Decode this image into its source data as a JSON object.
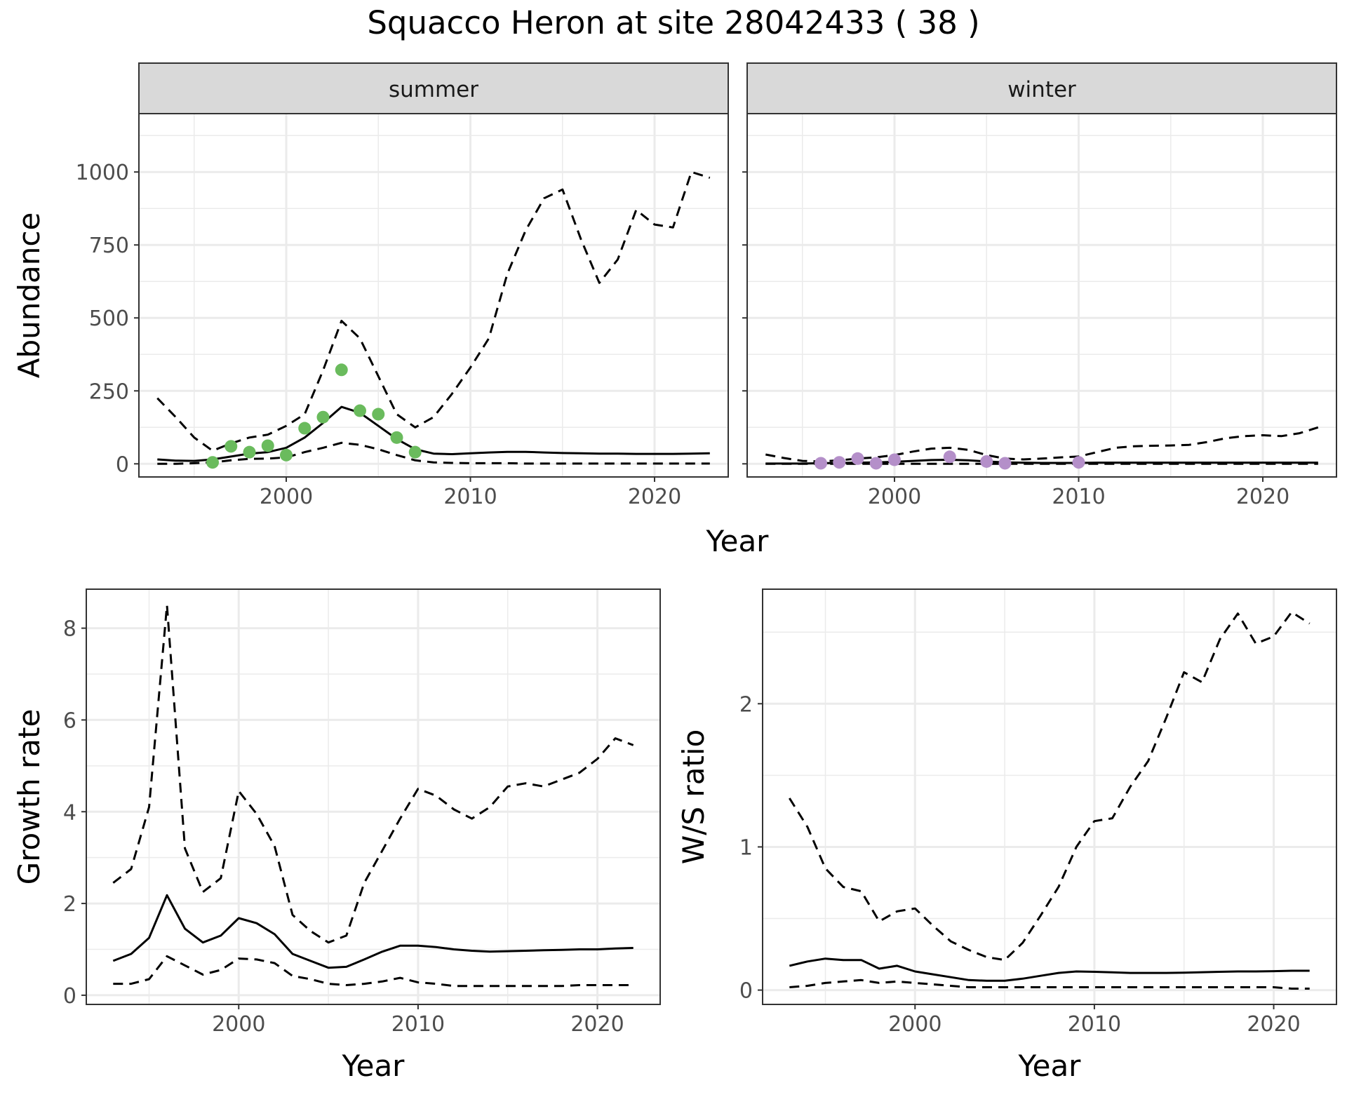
{
  "title": "Squacco Heron at site 28042433 ( 38 )",
  "chart_data": [
    {
      "id": "abundance",
      "type": "line",
      "facets": [
        {
          "label": "summer",
          "point_color": "#6abb5d",
          "fit": {
            "x": [
              1993,
              1994,
              1995,
              1996,
              1997,
              1998,
              1999,
              2000,
              2001,
              2002,
              2003,
              2004,
              2005,
              2006,
              2007,
              2008,
              2009,
              2010,
              2011,
              2012,
              2013,
              2014,
              2015,
              2016,
              2017,
              2018,
              2019,
              2020,
              2021,
              2022,
              2023
            ],
            "lower": [
              0,
              0,
              2,
              5,
              12,
              17,
              18,
              22,
              40,
              55,
              72,
              65,
              50,
              30,
              12,
              5,
              3,
              2,
              2,
              2,
              1,
              1,
              1,
              1,
              1,
              1,
              1,
              1,
              1,
              1,
              1
            ],
            "mid": [
              15,
              11,
              10,
              15,
              25,
              35,
              40,
              55,
              90,
              140,
              195,
              175,
              130,
              85,
              50,
              35,
              33,
              36,
              39,
              41,
              41,
              39,
              37,
              36,
              35,
              35,
              34,
              34,
              34,
              35,
              36
            ],
            "upper": [
              225,
              160,
              90,
              45,
              70,
              90,
              100,
              130,
              170,
              320,
              490,
              430,
              300,
              170,
              125,
              160,
              240,
              330,
              430,
              650,
              800,
              910,
              940,
              770,
              620,
              700,
              870,
              820,
              810,
              1000,
              980
            ]
          },
          "observations": {
            "x": [
              1996,
              1997,
              1998,
              1999,
              2000,
              2001,
              2002,
              2003,
              2004,
              2005,
              2006,
              2007
            ],
            "y": [
              5,
              60,
              40,
              62,
              30,
              122,
              160,
              322,
              182,
              170,
              90,
              40
            ]
          }
        },
        {
          "label": "winter",
          "point_color": "#b48fc9",
          "fit": {
            "x": [
              1993,
              1994,
              1995,
              1996,
              1997,
              1998,
              1999,
              2000,
              2001,
              2002,
              2003,
              2004,
              2005,
              2006,
              2007,
              2008,
              2009,
              2010,
              2011,
              2012,
              2013,
              2014,
              2015,
              2016,
              2017,
              2018,
              2019,
              2020,
              2021,
              2022,
              2023
            ],
            "lower": [
              0,
              0,
              0,
              0,
              0,
              0,
              0,
              0,
              0,
              0,
              0,
              0,
              0,
              0,
              0,
              0,
              0,
              0,
              0,
              0,
              0,
              0,
              0,
              0,
              0,
              0,
              0,
              0,
              0,
              0,
              0
            ],
            "mid": [
              1,
              1,
              1,
              2,
              3,
              4,
              5,
              7,
              10,
              13,
              14,
              12,
              8,
              5,
              4,
              3,
              3,
              3,
              4,
              4,
              4,
              4,
              4,
              4,
              4,
              4,
              4,
              4,
              4,
              4,
              4
            ],
            "upper": [
              32,
              20,
              10,
              8,
              12,
              18,
              22,
              30,
              42,
              52,
              55,
              48,
              30,
              18,
              15,
              18,
              22,
              25,
              40,
              55,
              60,
              62,
              63,
              65,
              75,
              88,
              95,
              98,
              95,
              105,
              125
            ]
          },
          "observations": {
            "x": [
              1996,
              1997,
              1998,
              1999,
              2000,
              2003,
              2005,
              2006,
              2010
            ],
            "y": [
              2,
              5,
              18,
              2,
              14,
              24,
              8,
              2,
              5
            ]
          }
        }
      ],
      "xlabel": "Year",
      "ylabel": "Abundance",
      "xlim": [
        1992,
        2024
      ],
      "ylim": [
        -45,
        1200
      ],
      "x_ticks": [
        2000,
        2010,
        2020
      ],
      "y_ticks": [
        0,
        250,
        500,
        750,
        1000
      ],
      "grid": true
    },
    {
      "id": "growth",
      "type": "line",
      "series_data": {
        "x": [
          1993,
          1994,
          1995,
          1996,
          1997,
          1998,
          1999,
          2000,
          2001,
          2002,
          2003,
          2004,
          2005,
          2006,
          2007,
          2008,
          2009,
          2010,
          2011,
          2012,
          2013,
          2014,
          2015,
          2016,
          2017,
          2018,
          2019,
          2020,
          2021,
          2022
        ],
        "lower": [
          0.25,
          0.25,
          0.35,
          0.85,
          0.65,
          0.45,
          0.55,
          0.8,
          0.78,
          0.7,
          0.42,
          0.35,
          0.25,
          0.22,
          0.25,
          0.3,
          0.38,
          0.28,
          0.25,
          0.2,
          0.2,
          0.2,
          0.2,
          0.2,
          0.2,
          0.2,
          0.22,
          0.22,
          0.22,
          0.22
        ],
        "mid": [
          0.75,
          0.9,
          1.25,
          2.18,
          1.45,
          1.15,
          1.3,
          1.68,
          1.57,
          1.33,
          0.9,
          0.75,
          0.6,
          0.62,
          0.78,
          0.95,
          1.08,
          1.08,
          1.05,
          1.0,
          0.97,
          0.95,
          0.96,
          0.97,
          0.98,
          0.99,
          1.0,
          1.0,
          1.02,
          1.03
        ],
        "upper": [
          2.45,
          2.75,
          4.1,
          8.5,
          3.2,
          2.25,
          2.55,
          4.45,
          3.95,
          3.25,
          1.75,
          1.4,
          1.15,
          1.3,
          2.45,
          3.15,
          3.85,
          4.5,
          4.35,
          4.05,
          3.85,
          4.1,
          4.55,
          4.62,
          4.55,
          4.7,
          4.85,
          5.15,
          5.6,
          5.45
        ]
      },
      "xlabel": "Year",
      "ylabel": "Growth rate",
      "xlim": [
        1991.5,
        2023.5
      ],
      "ylim": [
        -0.2,
        8.85
      ],
      "x_ticks": [
        2000,
        2010,
        2020
      ],
      "y_ticks": [
        0,
        2,
        4,
        6,
        8
      ],
      "grid": true
    },
    {
      "id": "ratio",
      "type": "line",
      "series_data": {
        "x": [
          1993,
          1994,
          1995,
          1996,
          1997,
          1998,
          1999,
          2000,
          2001,
          2002,
          2003,
          2004,
          2005,
          2006,
          2007,
          2008,
          2009,
          2010,
          2011,
          2012,
          2013,
          2014,
          2015,
          2016,
          2017,
          2018,
          2019,
          2020,
          2021,
          2022
        ],
        "lower": [
          0.02,
          0.03,
          0.05,
          0.06,
          0.07,
          0.05,
          0.06,
          0.05,
          0.04,
          0.03,
          0.02,
          0.02,
          0.02,
          0.02,
          0.02,
          0.02,
          0.02,
          0.02,
          0.02,
          0.02,
          0.02,
          0.02,
          0.02,
          0.02,
          0.02,
          0.02,
          0.02,
          0.02,
          0.01,
          0.01
        ],
        "mid": [
          0.17,
          0.2,
          0.22,
          0.21,
          0.21,
          0.15,
          0.17,
          0.13,
          0.11,
          0.09,
          0.07,
          0.065,
          0.065,
          0.08,
          0.1,
          0.12,
          0.13,
          0.128,
          0.124,
          0.12,
          0.12,
          0.12,
          0.122,
          0.125,
          0.128,
          0.13,
          0.13,
          0.132,
          0.135,
          0.135
        ],
        "upper": [
          1.34,
          1.14,
          0.85,
          0.72,
          0.69,
          0.48,
          0.55,
          0.57,
          0.45,
          0.34,
          0.28,
          0.23,
          0.21,
          0.33,
          0.52,
          0.72,
          1.0,
          1.18,
          1.2,
          1.42,
          1.6,
          1.9,
          2.22,
          2.15,
          2.45,
          2.63,
          2.42,
          2.47,
          2.64,
          2.56
        ]
      },
      "xlabel": "Year",
      "ylabel": "W/S ratio",
      "xlim": [
        1991.5,
        2023.5
      ],
      "ylim": [
        -0.1,
        2.8
      ],
      "x_ticks": [
        2000,
        2010,
        2020
      ],
      "y_ticks": [
        0,
        1,
        2
      ],
      "grid": true
    }
  ]
}
